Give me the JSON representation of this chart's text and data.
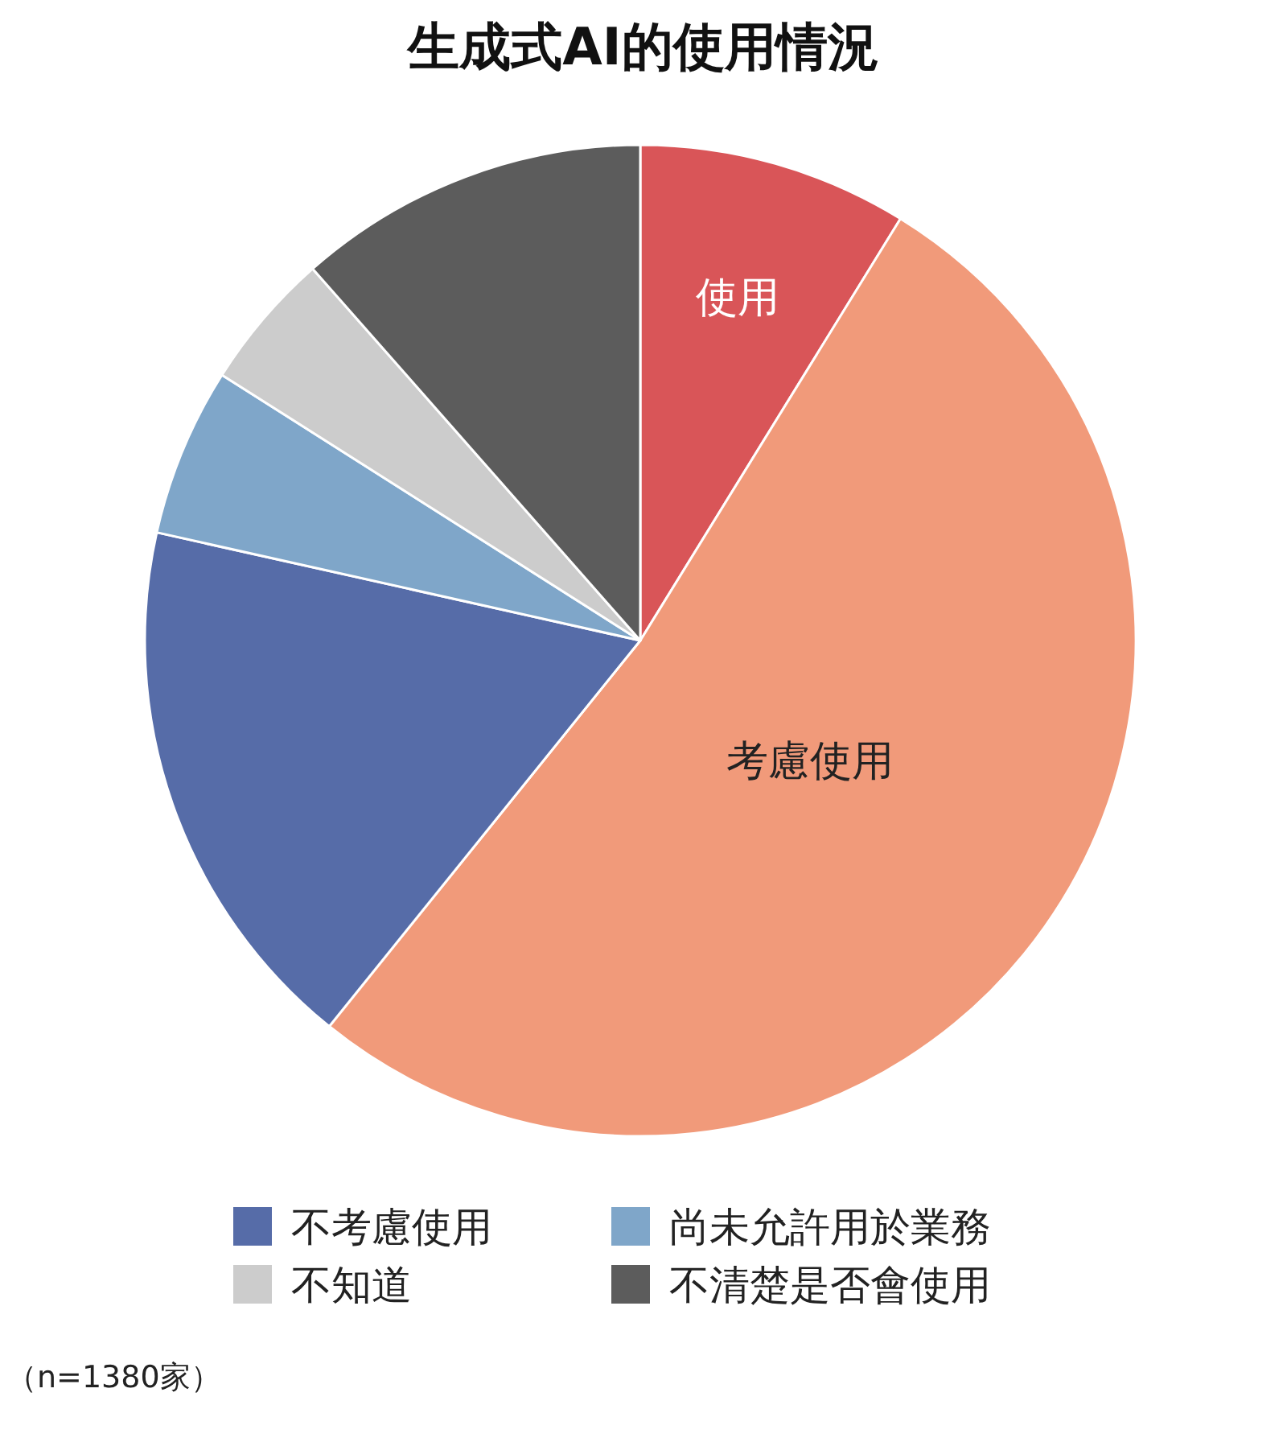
{
  "chart_data": {
    "type": "pie",
    "title": "生成式AI的使用情況",
    "categories": [
      "使用",
      "考慮使用",
      "不考慮使用",
      "尚未允許用於業務",
      "不知道",
      "不清楚是否會使用"
    ],
    "values": [
      8.8,
      52.0,
      17.7,
      5.5,
      4.5,
      11.5
    ],
    "colors": [
      "#d95558",
      "#f19a7a",
      "#566ca8",
      "#7fa6c9",
      "#cccccc",
      "#5c5c5c"
    ],
    "legend": "bottom",
    "annotations": [
      "（n=1380家）"
    ]
  }
}
